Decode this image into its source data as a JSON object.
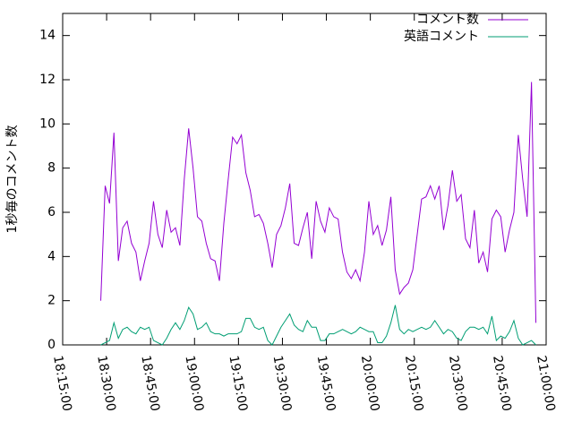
{
  "chart_data": {
    "type": "line",
    "y_label": "1秒毎のコメント数",
    "x": [
      "18:28:00",
      "18:29:30",
      "18:31:00",
      "18:32:30",
      "18:34:00",
      "18:35:30",
      "18:37:00",
      "18:38:30",
      "18:40:00",
      "18:41:30",
      "18:43:00",
      "18:44:30",
      "18:46:00",
      "18:47:30",
      "18:49:00",
      "18:50:30",
      "18:52:00",
      "18:53:30",
      "18:55:00",
      "18:56:30",
      "18:58:00",
      "18:59:30",
      "19:01:00",
      "19:02:30",
      "19:04:00",
      "19:05:30",
      "19:07:00",
      "19:08:30",
      "19:10:00",
      "19:11:30",
      "19:13:00",
      "19:14:30",
      "19:16:00",
      "19:17:30",
      "19:19:00",
      "19:20:30",
      "19:22:00",
      "19:23:30",
      "19:25:00",
      "19:26:30",
      "19:28:00",
      "19:29:30",
      "19:31:00",
      "19:32:30",
      "19:34:00",
      "19:35:30",
      "19:37:00",
      "19:38:30",
      "19:40:00",
      "19:41:30",
      "19:43:00",
      "19:44:30",
      "19:46:00",
      "19:47:30",
      "19:49:00",
      "19:50:30",
      "19:52:00",
      "19:53:30",
      "19:55:00",
      "19:56:30",
      "19:58:00",
      "19:59:30",
      "20:01:00",
      "20:02:30",
      "20:04:00",
      "20:05:30",
      "20:07:00",
      "20:08:30",
      "20:10:00",
      "20:11:30",
      "20:13:00",
      "20:14:30",
      "20:16:00",
      "20:17:30",
      "20:19:00",
      "20:20:30",
      "20:22:00",
      "20:23:30",
      "20:25:00",
      "20:26:30",
      "20:28:00",
      "20:29:30",
      "20:31:00",
      "20:32:30",
      "20:34:00",
      "20:35:30",
      "20:37:00",
      "20:38:30",
      "20:40:00",
      "20:41:30",
      "20:43:00",
      "20:44:30",
      "20:46:00",
      "20:47:30",
      "20:49:00",
      "20:50:30",
      "20:52:00",
      "20:53:30",
      "20:55:00",
      "20:56:30"
    ],
    "series": [
      {
        "name": "コメント数",
        "color": "#9400d3",
        "values": [
          2.0,
          7.2,
          6.4,
          9.6,
          3.8,
          5.3,
          5.6,
          4.6,
          4.2,
          2.9,
          3.8,
          4.6,
          6.5,
          5.0,
          4.4,
          6.1,
          5.1,
          5.3,
          4.5,
          7.5,
          9.8,
          8.0,
          5.8,
          5.6,
          4.6,
          3.9,
          3.8,
          2.9,
          5.5,
          7.5,
          9.4,
          9.1,
          9.5,
          7.8,
          7.0,
          5.8,
          5.9,
          5.5,
          4.6,
          3.5,
          5.0,
          5.4,
          6.2,
          7.3,
          4.6,
          4.5,
          5.3,
          6.0,
          3.9,
          6.5,
          5.6,
          5.1,
          6.2,
          5.8,
          5.7,
          4.2,
          3.3,
          3.0,
          3.4,
          2.9,
          4.2,
          6.5,
          5.0,
          5.4,
          4.5,
          5.2,
          6.7,
          3.4,
          2.3,
          2.6,
          2.8,
          3.4,
          5.0,
          6.6,
          6.7,
          7.2,
          6.6,
          7.2,
          5.2,
          6.3,
          7.9,
          6.5,
          6.8,
          4.8,
          4.4,
          6.1,
          3.7,
          4.2,
          3.3,
          5.7,
          6.1,
          5.8,
          4.2,
          5.2,
          6.0,
          9.5,
          7.5,
          5.8,
          11.9,
          1.0
        ]
      },
      {
        "name": "英語コメント",
        "color": "#009e73",
        "values": [
          0.0,
          0.1,
          0.2,
          1.0,
          0.3,
          0.7,
          0.8,
          0.6,
          0.5,
          0.8,
          0.7,
          0.8,
          0.2,
          0.1,
          0.0,
          0.3,
          0.7,
          1.0,
          0.7,
          1.1,
          1.7,
          1.4,
          0.7,
          0.8,
          1.0,
          0.6,
          0.5,
          0.5,
          0.4,
          0.5,
          0.5,
          0.5,
          0.6,
          1.2,
          1.2,
          0.8,
          0.7,
          0.8,
          0.2,
          0.0,
          0.4,
          0.8,
          1.1,
          1.4,
          0.9,
          0.7,
          0.6,
          1.1,
          0.8,
          0.8,
          0.2,
          0.2,
          0.5,
          0.5,
          0.6,
          0.7,
          0.6,
          0.5,
          0.6,
          0.8,
          0.7,
          0.6,
          0.6,
          0.1,
          0.1,
          0.4,
          1.0,
          1.8,
          0.7,
          0.5,
          0.7,
          0.6,
          0.7,
          0.8,
          0.7,
          0.8,
          1.1,
          0.8,
          0.5,
          0.7,
          0.6,
          0.3,
          0.2,
          0.6,
          0.8,
          0.8,
          0.7,
          0.8,
          0.5,
          1.3,
          0.2,
          0.4,
          0.3,
          0.6,
          1.1,
          0.3,
          0.0,
          0.1,
          0.2,
          0.0
        ]
      }
    ],
    "xlim": [
      "18:15:00",
      "21:00:00"
    ],
    "xticks": [
      "18:15:00",
      "18:30:00",
      "18:45:00",
      "19:00:00",
      "19:15:00",
      "19:30:00",
      "19:45:00",
      "20:00:00",
      "20:15:00",
      "20:30:00",
      "20:45:00",
      "21:00:00"
    ],
    "ylim": [
      0,
      15
    ],
    "yticks": [
      0,
      2,
      4,
      6,
      8,
      10,
      12,
      14
    ],
    "legend": "top-right"
  }
}
